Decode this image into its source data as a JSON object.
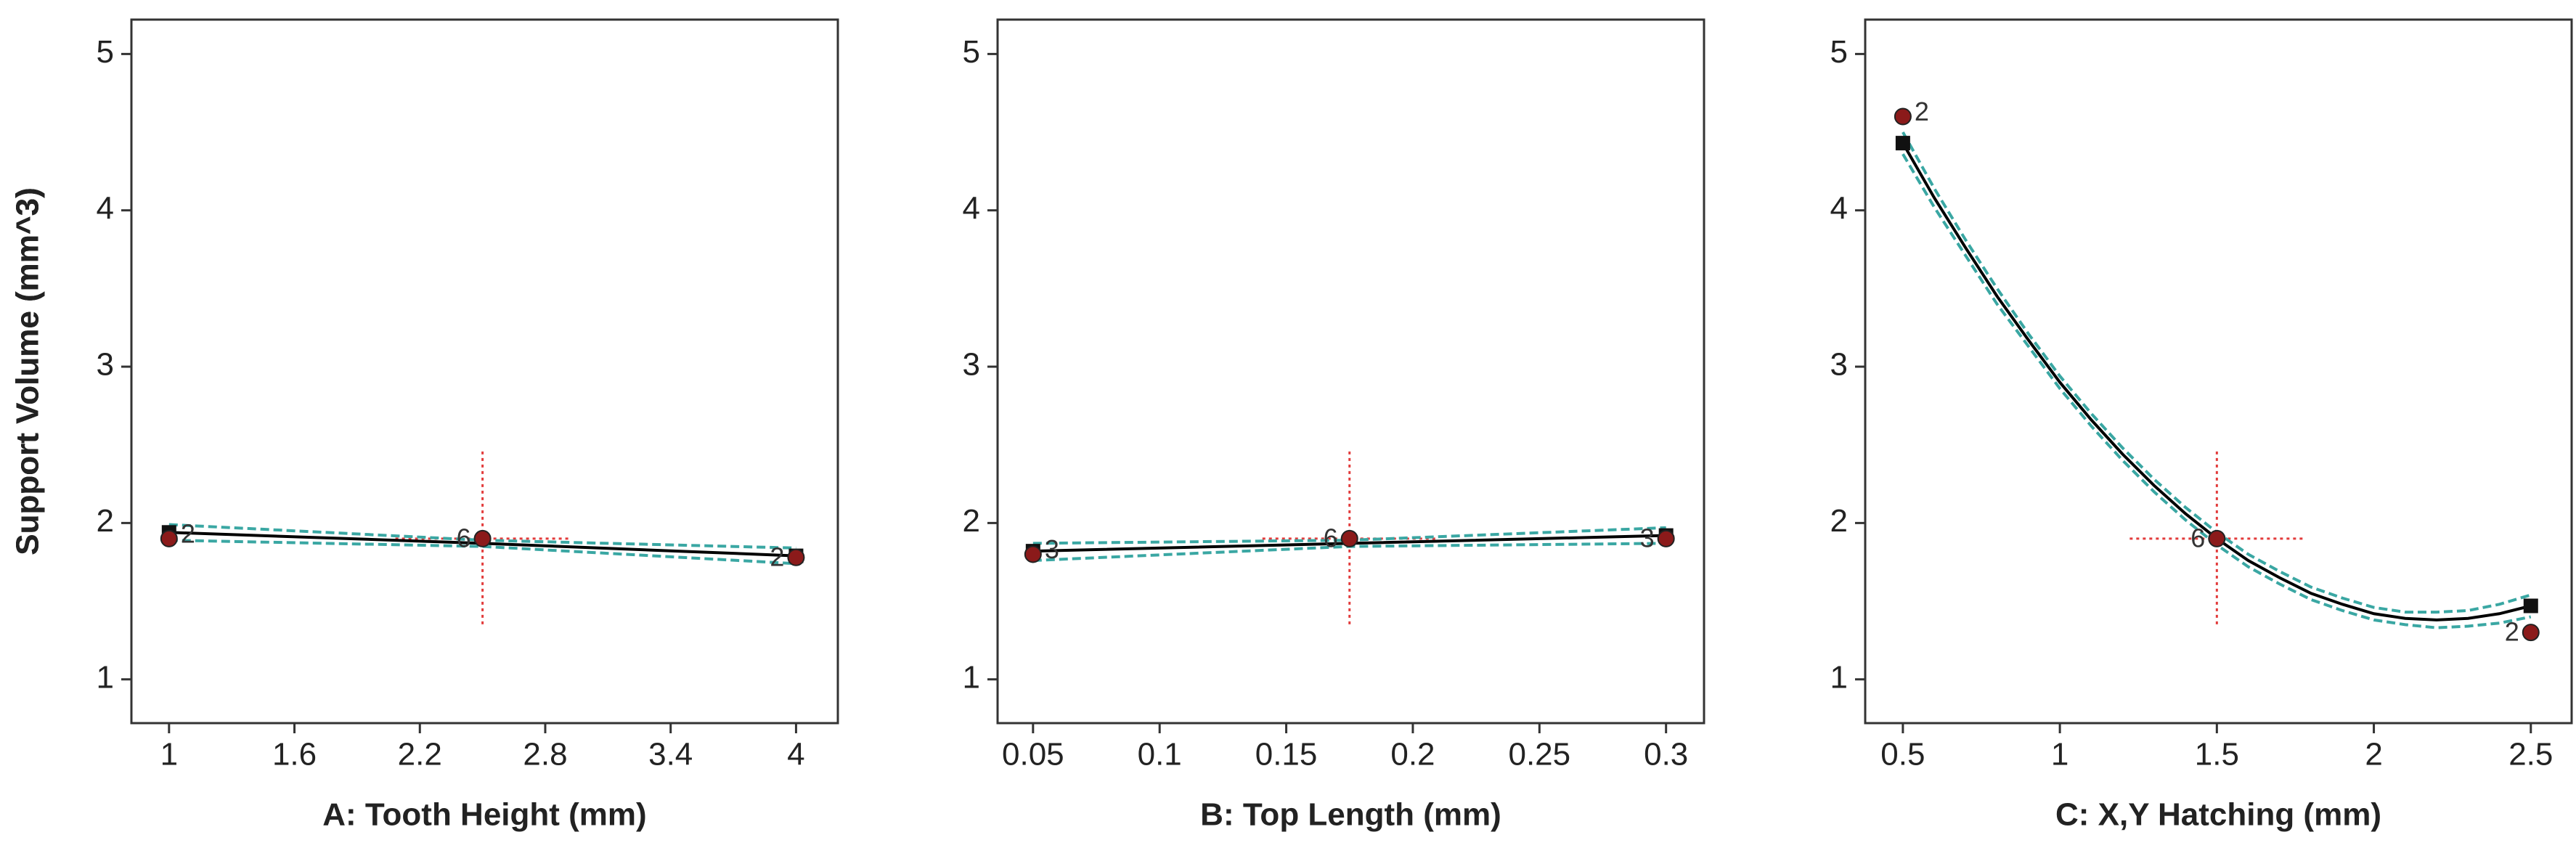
{
  "chart_data": [
    {
      "type": "line",
      "x_label": "A: Tooth Height (mm)",
      "y_label": "Support Volume (mm^3)",
      "xlim": [
        0.82,
        4.2
      ],
      "ylim": [
        0.72,
        5.22
      ],
      "xticks": [
        1,
        1.6,
        2.2,
        2.8,
        3.4,
        4
      ],
      "yticks": [
        1,
        2,
        3,
        4,
        5
      ],
      "x": [
        1,
        2.5,
        4
      ],
      "series": [
        {
          "color": "#000000",
          "style": "solid",
          "values": [
            1.94,
            1.87,
            1.79
          ]
        },
        {
          "color": "#3aa7a3",
          "style": "dashed",
          "values": [
            1.99,
            1.89,
            1.84
          ]
        },
        {
          "color": "#3aa7a3",
          "style": "dashed",
          "values": [
            1.89,
            1.85,
            1.74
          ]
        }
      ],
      "points": {
        "color": "#8b1a1a",
        "x": [
          1,
          2.5,
          4
        ],
        "y": [
          1.9,
          1.9,
          1.78
        ],
        "counts": [
          2,
          6,
          2
        ]
      },
      "crosshair": {
        "color": "#e23b3b",
        "x": 2.5,
        "y": 1.9
      }
    },
    {
      "type": "line",
      "x_label": "B: Top Length (mm)",
      "y_label": "Support Volume (mm^3)",
      "xlim": [
        0.036,
        0.315
      ],
      "ylim": [
        0.72,
        5.22
      ],
      "xticks": [
        0.05,
        0.1,
        0.15,
        0.2,
        0.25,
        0.3
      ],
      "yticks": [
        1,
        2,
        3,
        4,
        5
      ],
      "x": [
        0.05,
        0.175,
        0.3
      ],
      "series": [
        {
          "color": "#000000",
          "style": "solid",
          "values": [
            1.82,
            1.87,
            1.92
          ]
        },
        {
          "color": "#3aa7a3",
          "style": "dashed",
          "values": [
            1.87,
            1.89,
            1.97
          ]
        },
        {
          "color": "#3aa7a3",
          "style": "dashed",
          "values": [
            1.76,
            1.85,
            1.87
          ]
        }
      ],
      "points": {
        "color": "#8b1a1a",
        "x": [
          0.05,
          0.175,
          0.3
        ],
        "y": [
          1.8,
          1.9,
          1.9
        ],
        "counts": [
          3,
          6,
          3
        ]
      },
      "crosshair": {
        "color": "#e23b3b",
        "x": 0.175,
        "y": 1.9
      }
    },
    {
      "type": "line",
      "x_label": "C: X,Y Hatching (mm)",
      "y_label": "Support Volume (mm^3)",
      "xlim": [
        0.38,
        2.63
      ],
      "ylim": [
        0.72,
        5.22
      ],
      "xticks": [
        0.5,
        1,
        1.5,
        2,
        2.5
      ],
      "yticks": [
        1,
        2,
        3,
        4,
        5
      ],
      "x": [
        0.5,
        0.6,
        0.7,
        0.8,
        0.9,
        1.0,
        1.1,
        1.2,
        1.3,
        1.4,
        1.5,
        1.6,
        1.7,
        1.8,
        1.9,
        2.0,
        2.1,
        2.2,
        2.3,
        2.4,
        2.5
      ],
      "series": [
        {
          "color": "#000000",
          "style": "solid",
          "values": [
            4.43,
            4.08,
            3.76,
            3.45,
            3.17,
            2.9,
            2.66,
            2.44,
            2.24,
            2.06,
            1.9,
            1.76,
            1.65,
            1.55,
            1.48,
            1.42,
            1.39,
            1.38,
            1.39,
            1.42,
            1.47
          ]
        },
        {
          "color": "#3aa7a3",
          "style": "dashed",
          "values": [
            4.5,
            4.14,
            3.81,
            3.5,
            3.21,
            2.94,
            2.7,
            2.48,
            2.28,
            2.1,
            1.94,
            1.8,
            1.69,
            1.59,
            1.52,
            1.46,
            1.43,
            1.43,
            1.44,
            1.48,
            1.54
          ]
        },
        {
          "color": "#3aa7a3",
          "style": "dashed",
          "values": [
            4.36,
            4.02,
            3.71,
            3.4,
            3.13,
            2.86,
            2.62,
            2.4,
            2.2,
            2.02,
            1.86,
            1.72,
            1.61,
            1.51,
            1.44,
            1.38,
            1.35,
            1.33,
            1.34,
            1.36,
            1.4
          ]
        }
      ],
      "points": {
        "color": "#8b1a1a",
        "x": [
          0.5,
          1.5,
          2.5
        ],
        "y": [
          4.6,
          1.9,
          1.3
        ],
        "counts": [
          2,
          6,
          2
        ]
      },
      "crosshair": {
        "color": "#e23b3b",
        "x": 1.5,
        "y": 1.9
      }
    }
  ]
}
